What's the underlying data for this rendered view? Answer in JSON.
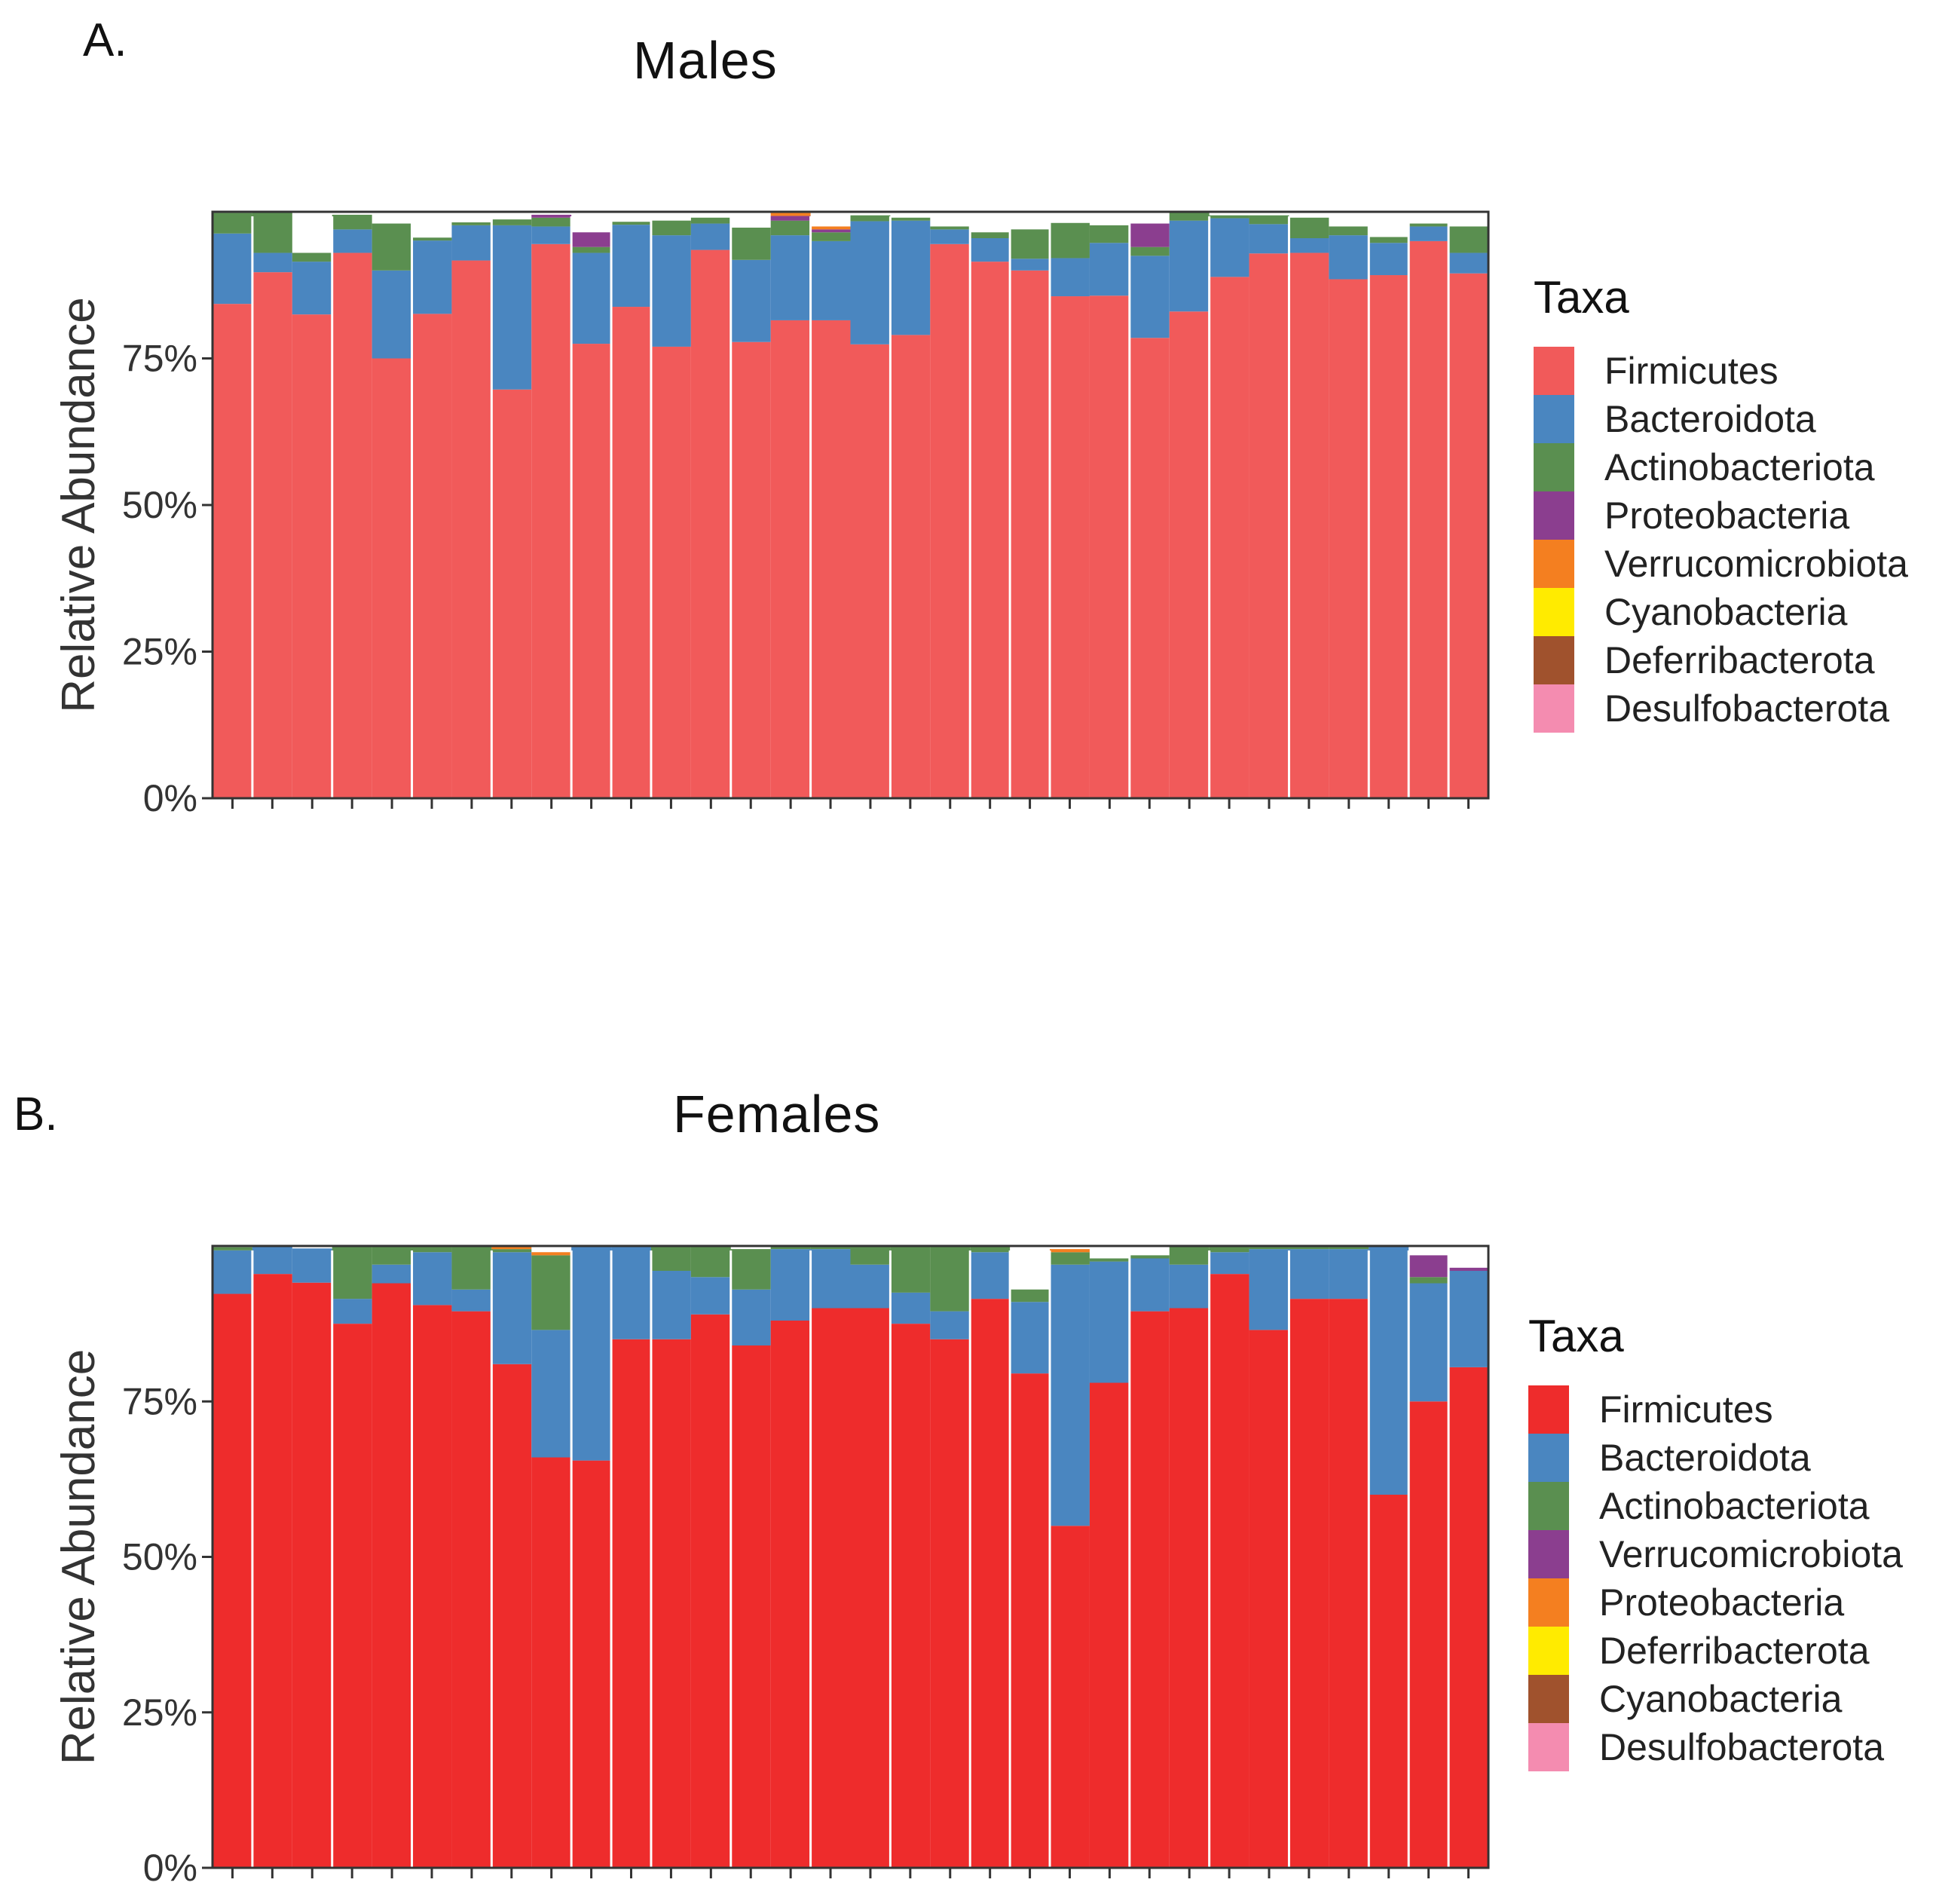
{
  "chart_data": [
    {
      "panel_label": "A.",
      "title": "Males",
      "type": "bar",
      "stacked": true,
      "ylabel": "Relative Abundance",
      "ylim": [
        0,
        100
      ],
      "yticks": [
        "0%",
        "25%",
        "50%",
        "75%"
      ],
      "yticks_values": [
        0,
        25,
        50,
        75
      ],
      "legend_title": "Taxa",
      "legend_position": "right",
      "series": [
        {
          "name": "Firmicutes",
          "color": "#F15A5A",
          "values": [
            84.3,
            89.7,
            82.5,
            93.0,
            75.0,
            82.6,
            91.7,
            69.7,
            94.5,
            77.5,
            83.8,
            77.0,
            93.5,
            77.8,
            81.5,
            81.5,
            77.4,
            79.0,
            94.5,
            91.5,
            90.0,
            85.6,
            85.7,
            78.5,
            83.0,
            88.9,
            92.9,
            93.0,
            88.5,
            89.2,
            95.0,
            89.5
          ]
        },
        {
          "name": "Bacteroidota",
          "color": "#4A86C0",
          "values": [
            12.0,
            3.3,
            9.0,
            4.0,
            15.0,
            12.5,
            6.0,
            28.0,
            3.0,
            15.5,
            14.0,
            19.0,
            4.5,
            14.0,
            14.5,
            13.5,
            21.0,
            19.5,
            2.5,
            4.0,
            2.0,
            6.5,
            9.0,
            14.0,
            15.5,
            10.0,
            5.0,
            2.5,
            7.5,
            5.5,
            2.5,
            3.5
          ]
        },
        {
          "name": "Actinobacteriota",
          "color": "#5A8F50",
          "values": [
            3.5,
            7.0,
            1.5,
            2.5,
            8.0,
            0.5,
            0.5,
            1.0,
            1.5,
            1.0,
            0.5,
            2.5,
            1.0,
            5.5,
            2.5,
            1.5,
            1.0,
            0.5,
            0.5,
            1.0,
            5.0,
            6.0,
            3.0,
            1.5,
            1.5,
            0.5,
            1.5,
            3.5,
            1.5,
            1.0,
            0.5,
            4.5
          ]
        },
        {
          "name": "Proteobacteria",
          "color": "#8B3E8F",
          "values": [
            0,
            0,
            0,
            0,
            0,
            0,
            0,
            0,
            0.5,
            2.5,
            0,
            0,
            0,
            0,
            0.8,
            0.5,
            0,
            0,
            0,
            0,
            0,
            0,
            0,
            4.0,
            0,
            0,
            0,
            0,
            0,
            0,
            0,
            0
          ]
        },
        {
          "name": "Verrucomicrobiota",
          "color": "#F47F20",
          "values": [
            0,
            0,
            0,
            0,
            0,
            0,
            0,
            0,
            0,
            0,
            0,
            0,
            0,
            0,
            0.5,
            0.5,
            0,
            0,
            0,
            0,
            0,
            0,
            0,
            0,
            0,
            0,
            0,
            0,
            0,
            0,
            0,
            0
          ]
        },
        {
          "name": "Cyanobacteria",
          "color": "#FFEB00",
          "values": [
            0,
            0,
            0,
            0,
            0,
            0,
            0,
            0,
            0,
            0,
            0,
            0,
            0,
            0,
            0,
            0,
            0,
            0,
            0,
            0,
            0,
            0,
            0,
            0,
            0,
            0,
            0,
            0,
            0,
            0,
            0,
            0
          ]
        },
        {
          "name": "Deferribacterota",
          "color": "#A0522D",
          "values": [
            0,
            0,
            0,
            0,
            0,
            0,
            0,
            0,
            0,
            0,
            0,
            0,
            0,
            0,
            0,
            0,
            0,
            0,
            0,
            0,
            0,
            0,
            0,
            0,
            0,
            0,
            0,
            0,
            0,
            0,
            0,
            0
          ]
        },
        {
          "name": "Desulfobacterota",
          "color": "#F48CB0",
          "values": [
            0,
            0,
            0,
            0,
            0,
            0,
            0,
            0,
            0,
            0,
            0,
            0,
            0,
            0,
            0,
            0,
            0,
            0,
            0,
            0,
            0,
            0,
            0,
            0,
            0,
            0,
            0,
            0,
            0,
            0,
            0,
            0
          ]
        }
      ]
    },
    {
      "panel_label": "B.",
      "title": "Females",
      "type": "bar",
      "stacked": true,
      "ylabel": "Relative Abundance",
      "ylim": [
        0,
        100
      ],
      "yticks": [
        "0%",
        "25%",
        "50%",
        "75%"
      ],
      "yticks_values": [
        0,
        25,
        50,
        75
      ],
      "legend_title": "Taxa",
      "legend_position": "right",
      "series": [
        {
          "name": "Firmicutes",
          "color": "#EE2C2C",
          "values": [
            92.3,
            95.5,
            94.1,
            87.5,
            94.0,
            90.5,
            89.5,
            81.0,
            66.0,
            65.5,
            85.0,
            85.0,
            89.0,
            84.0,
            88.0,
            90.0,
            90.0,
            87.5,
            85.0,
            91.5,
            79.5,
            55.0,
            78.0,
            89.5,
            90.0,
            95.5,
            86.5,
            91.5,
            91.5,
            60.0,
            75.0,
            80.5
          ]
        },
        {
          "name": "Bacteroidota",
          "color": "#4A86C0",
          "values": [
            7.0,
            4.5,
            5.5,
            4.0,
            3.0,
            8.5,
            3.5,
            18.0,
            20.5,
            34.5,
            15.0,
            11.0,
            6.0,
            9.0,
            11.5,
            9.5,
            7.0,
            5.0,
            4.5,
            7.5,
            11.5,
            42.0,
            19.5,
            8.5,
            7.0,
            3.5,
            13.0,
            8.0,
            8.0,
            40.0,
            19.0,
            15.5
          ]
        },
        {
          "name": "Actinobacteriota",
          "color": "#5A8F50",
          "values": [
            0.5,
            0,
            0,
            8.5,
            3.0,
            1.0,
            7.0,
            0.5,
            12.0,
            0,
            0,
            4.0,
            5.0,
            6.5,
            0.5,
            0.5,
            3.0,
            7.5,
            10.5,
            1.0,
            2.0,
            2.0,
            0.5,
            0.5,
            3.0,
            1.0,
            0.5,
            0.5,
            0.5,
            0,
            1.0,
            0
          ]
        },
        {
          "name": "Verrucomicrobiota",
          "color": "#8B3E8F",
          "values": [
            0,
            0,
            0,
            0,
            0,
            0,
            0,
            0,
            0,
            0,
            0,
            0,
            0,
            0,
            0,
            0,
            0,
            0,
            0,
            0,
            0,
            0,
            0,
            0,
            0,
            0,
            0,
            0,
            0,
            0,
            3.5,
            0.5
          ]
        },
        {
          "name": "Proteobacteria",
          "color": "#F47F20",
          "values": [
            0,
            0,
            0,
            0,
            0,
            0,
            0,
            0.5,
            0.5,
            0,
            0,
            0,
            0,
            0,
            0,
            0,
            0,
            0,
            0,
            0,
            0,
            0.5,
            0,
            0,
            0,
            0,
            0,
            0,
            0,
            0,
            0,
            0
          ]
        },
        {
          "name": "Deferribacterota",
          "color": "#FFEB00",
          "values": [
            0,
            0,
            0,
            0,
            0,
            0,
            0,
            0,
            0,
            0,
            0,
            0,
            0,
            0,
            0,
            0,
            0,
            0,
            0,
            0,
            0,
            0,
            0,
            0,
            0,
            0,
            0,
            0,
            0,
            0,
            0,
            0
          ]
        },
        {
          "name": "Cyanobacteria",
          "color": "#A0522D",
          "values": [
            0,
            0,
            0,
            0,
            0,
            0,
            0,
            0,
            0,
            0,
            0,
            0,
            0,
            0,
            0,
            0,
            0,
            0,
            0,
            0,
            0,
            0,
            0,
            0,
            0,
            0,
            0,
            0,
            0,
            0,
            0,
            0
          ]
        },
        {
          "name": "Desulfobacterota",
          "color": "#F48CB0",
          "values": [
            0,
            0,
            0,
            0,
            0,
            0,
            0,
            0,
            0,
            0,
            0,
            0,
            0,
            0,
            0,
            0,
            0,
            0,
            0,
            0,
            0,
            0,
            0,
            0,
            0,
            0,
            0,
            0,
            0,
            0,
            0,
            0
          ]
        }
      ]
    }
  ]
}
